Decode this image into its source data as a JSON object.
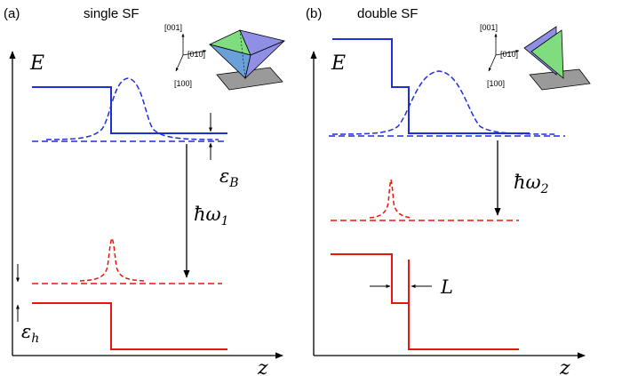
{
  "panel_a": {
    "tag": "(a)",
    "title": "single SF",
    "axis_y": "E",
    "axis_x": "z",
    "dir_001": "[001]",
    "dir_010": "[010]",
    "dir_100": "[100]",
    "eps_b": "εB",
    "eps_b_base": "ε",
    "eps_b_sub": "B",
    "hw": "ħω",
    "hw_sub": "1",
    "eps_h_base": "ε",
    "eps_h_sub": "h"
  },
  "panel_b": {
    "tag": "(b)",
    "title": "double SF",
    "axis_y": "E",
    "axis_x": "z",
    "dir_001": "[001]",
    "dir_010": "[010]",
    "dir_100": "[100]",
    "hw": "ħω",
    "hw_sub": "2",
    "width_label": "L"
  },
  "colors": {
    "conduction": "#1f2fd8",
    "valence": "#e8160c",
    "axis": "#000000",
    "plane": "#9a9a9a",
    "tri_green": "#7fdc7f",
    "tri_blue": "#8f8fe6"
  }
}
